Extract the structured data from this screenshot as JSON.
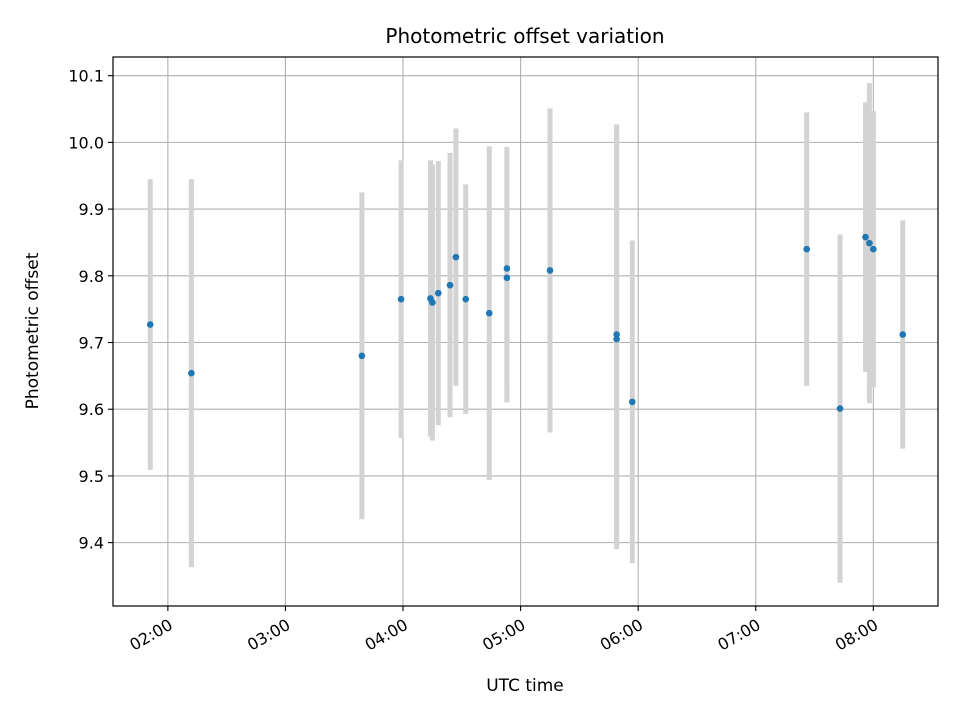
{
  "chart_data": {
    "type": "scatter",
    "title": "Photometric offset variation",
    "xlabel": "UTC time",
    "ylabel": "Photometric offset",
    "x_unit": "UTC hh:mm",
    "xlim": [
      "01:32",
      "08:33"
    ],
    "ylim": [
      9.305,
      10.128
    ],
    "grid": true,
    "x_ticks": [
      "02:00",
      "03:00",
      "04:00",
      "05:00",
      "06:00",
      "07:00",
      "08:00"
    ],
    "y_ticks": [
      "9.4",
      "9.5",
      "9.6",
      "9.7",
      "9.8",
      "9.9",
      "10.0",
      "10.1"
    ],
    "marker_color": "#1f77b4",
    "errorbar_color": "#d3d3d3",
    "points": [
      {
        "t": "01:51",
        "y": 9.727,
        "yerr": 0.218
      },
      {
        "t": "02:12",
        "y": 9.654,
        "yerr": 0.291
      },
      {
        "t": "03:39",
        "y": 9.68,
        "yerr": 0.245
      },
      {
        "t": "03:59",
        "y": 9.765,
        "yerr": 0.208
      },
      {
        "t": "04:14",
        "y": 9.766,
        "yerr": 0.207
      },
      {
        "t": "04:15",
        "y": 9.76,
        "yerr": 0.207
      },
      {
        "t": "04:18",
        "y": 9.774,
        "yerr": 0.198
      },
      {
        "t": "04:24",
        "y": 9.786,
        "yerr": 0.198
      },
      {
        "t": "04:27",
        "y": 9.828,
        "yerr": 0.193
      },
      {
        "t": "04:32",
        "y": 9.765,
        "yerr": 0.172
      },
      {
        "t": "04:44",
        "y": 9.744,
        "yerr": 0.25
      },
      {
        "t": "04:53",
        "y": 9.811,
        "yerr": 0.182
      },
      {
        "t": "04:53",
        "y": 9.797,
        "yerr": 0.187
      },
      {
        "t": "05:15",
        "y": 9.808,
        "yerr": 0.243
      },
      {
        "t": "05:49",
        "y": 9.712,
        "yerr": 0.315
      },
      {
        "t": "05:49",
        "y": 9.705,
        "yerr": 0.315
      },
      {
        "t": "05:57",
        "y": 9.611,
        "yerr": 0.242
      },
      {
        "t": "07:26",
        "y": 9.84,
        "yerr": 0.205
      },
      {
        "t": "07:43",
        "y": 9.601,
        "yerr": 0.261
      },
      {
        "t": "07:56",
        "y": 9.858,
        "yerr": 0.202
      },
      {
        "t": "07:58",
        "y": 9.849,
        "yerr": 0.24
      },
      {
        "t": "08:00",
        "y": 9.84,
        "yerr": 0.207
      },
      {
        "t": "08:15",
        "y": 9.712,
        "yerr": 0.171
      }
    ]
  }
}
